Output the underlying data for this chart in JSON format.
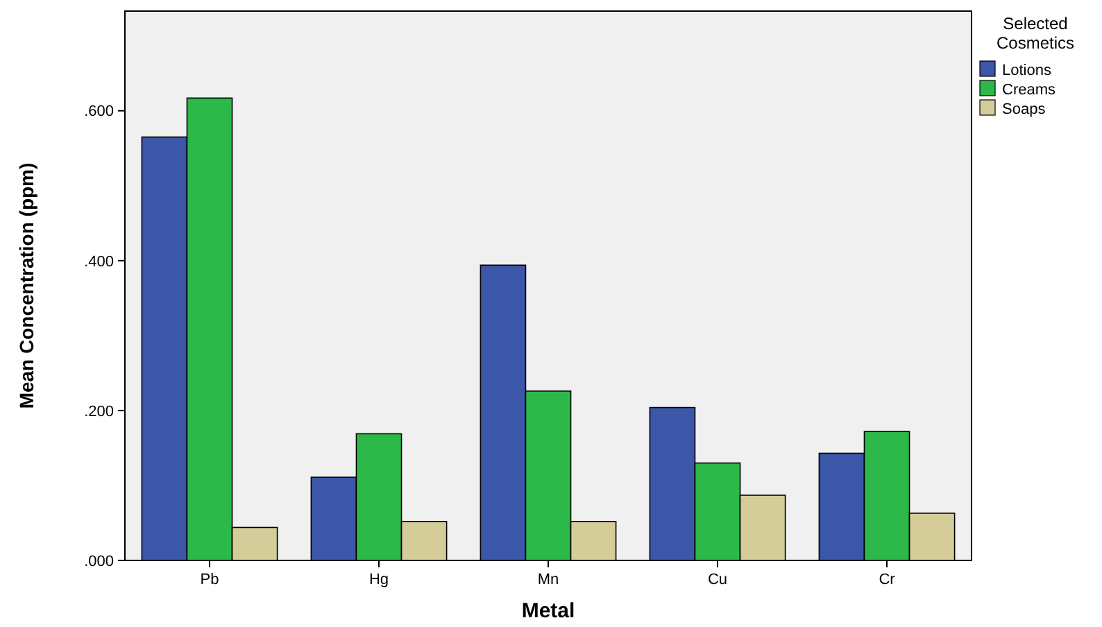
{
  "chart_data": {
    "type": "bar",
    "xlabel": "Metal",
    "ylabel": "Mean Concentration (ppm)",
    "legend_title": "Selected Cosmetics",
    "categories": [
      "Pb",
      "Hg",
      "Mn",
      "Cu",
      "Cr"
    ],
    "series": [
      {
        "name": "Lotions",
        "color": "#3c56a8",
        "values": [
          0.565,
          0.111,
          0.394,
          0.204,
          0.143
        ]
      },
      {
        "name": "Creams",
        "color": "#2db84a",
        "values": [
          0.617,
          0.169,
          0.226,
          0.13,
          0.172
        ]
      },
      {
        "name": "Soaps",
        "color": "#d4cc99",
        "values": [
          0.044,
          0.052,
          0.052,
          0.087,
          0.063
        ]
      }
    ],
    "ylim": [
      0,
      0.733
    ],
    "yticks": [
      {
        "value": 0,
        "label": ".000"
      },
      {
        "value": 0.2,
        "label": ".200"
      },
      {
        "value": 0.4,
        "label": ".400"
      },
      {
        "value": 0.6,
        "label": ".600"
      }
    ],
    "grid": false,
    "legend": "top right"
  }
}
